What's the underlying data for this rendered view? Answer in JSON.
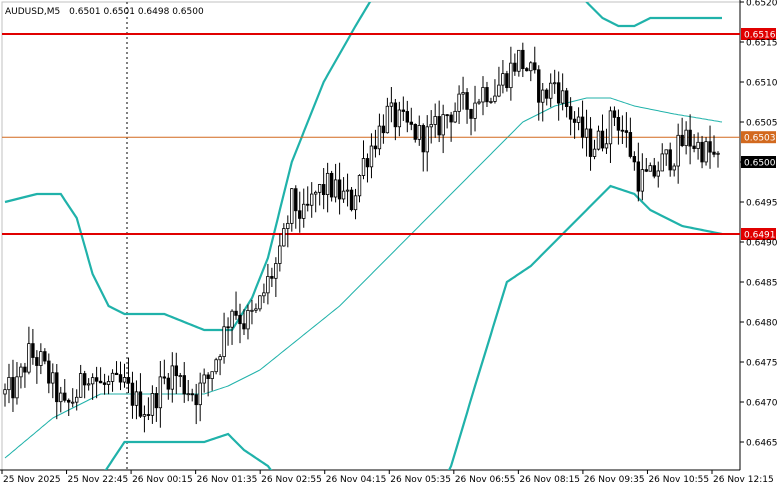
{
  "chart_data": {
    "type": "candlestick",
    "symbol_label": "AUDUSD,M5",
    "ohlc_label": "0.6501 0.6501 0.6498 0.6500",
    "ylim": [
      0.64615,
      0.652
    ],
    "y_ticks": [
      "0.6465",
      "0.6470",
      "0.6475",
      "0.6480",
      "0.6485",
      "0.6490",
      "0.6495",
      "0.6500",
      "0.6505",
      "0.6510",
      "0.6515",
      "0.6520"
    ],
    "x_ticks": [
      "25 Nov 2025",
      "25 Nov 22:45",
      "26 Nov 00:15",
      "26 Nov 01:35",
      "26 Nov 02:55",
      "26 Nov 04:15",
      "26 Nov 05:35",
      "26 Nov 06:55",
      "26 Nov 08:15",
      "26 Nov 09:35",
      "26 Nov 10:55",
      "26 Nov 12:15"
    ],
    "grid": false,
    "colors": {
      "candle": "#000000",
      "bollinger": "#20b2aa",
      "level_line": "#e00000",
      "current_price_line": "#d2691e",
      "price_box": "#000000"
    },
    "levels": [
      {
        "value": 0.6516,
        "label": "0.6516",
        "color": "#e00000"
      },
      {
        "value": 0.6491,
        "label": "0.6491",
        "color": "#e00000"
      },
      {
        "value": 0.65031,
        "label": "0.6503",
        "color": "#d2691e"
      }
    ],
    "current_price": {
      "value": 0.65,
      "label": "0.6500"
    },
    "candle_anchors": [
      {
        "i": 0,
        "c": 0.6471
      },
      {
        "i": 3,
        "c": 0.6472
      },
      {
        "i": 6,
        "c": 0.6476
      },
      {
        "i": 9,
        "c": 0.6475
      },
      {
        "i": 12,
        "c": 0.6472
      },
      {
        "i": 15,
        "c": 0.6469
      },
      {
        "i": 18,
        "c": 0.6471
      },
      {
        "i": 21,
        "c": 0.6474
      },
      {
        "i": 24,
        "c": 0.6472
      },
      {
        "i": 27,
        "c": 0.6472
      },
      {
        "i": 30,
        "c": 0.6472
      },
      {
        "i": 33,
        "c": 0.647
      },
      {
        "i": 36,
        "c": 0.6469
      },
      {
        "i": 39,
        "c": 0.6472
      },
      {
        "i": 42,
        "c": 0.6474
      },
      {
        "i": 45,
        "c": 0.6472
      },
      {
        "i": 48,
        "c": 0.6471
      },
      {
        "i": 51,
        "c": 0.6473
      },
      {
        "i": 54,
        "c": 0.6477
      },
      {
        "i": 57,
        "c": 0.6482
      },
      {
        "i": 60,
        "c": 0.648
      },
      {
        "i": 63,
        "c": 0.6481
      },
      {
        "i": 66,
        "c": 0.6485
      },
      {
        "i": 69,
        "c": 0.6488
      },
      {
        "i": 72,
        "c": 0.6495
      },
      {
        "i": 75,
        "c": 0.6493
      },
      {
        "i": 78,
        "c": 0.6496
      },
      {
        "i": 81,
        "c": 0.6497
      },
      {
        "i": 84,
        "c": 0.6496
      },
      {
        "i": 87,
        "c": 0.6495
      },
      {
        "i": 90,
        "c": 0.65
      },
      {
        "i": 93,
        "c": 0.6503
      },
      {
        "i": 96,
        "c": 0.6506
      },
      {
        "i": 99,
        "c": 0.6505
      },
      {
        "i": 102,
        "c": 0.6504
      },
      {
        "i": 105,
        "c": 0.6503
      },
      {
        "i": 108,
        "c": 0.6504
      },
      {
        "i": 111,
        "c": 0.6506
      },
      {
        "i": 114,
        "c": 0.6507
      },
      {
        "i": 117,
        "c": 0.6507
      },
      {
        "i": 120,
        "c": 0.6509
      },
      {
        "i": 123,
        "c": 0.6509
      },
      {
        "i": 126,
        "c": 0.6511
      },
      {
        "i": 129,
        "c": 0.6513
      },
      {
        "i": 132,
        "c": 0.6511
      },
      {
        "i": 135,
        "c": 0.6508
      },
      {
        "i": 138,
        "c": 0.651
      },
      {
        "i": 141,
        "c": 0.6507
      },
      {
        "i": 144,
        "c": 0.6504
      },
      {
        "i": 147,
        "c": 0.6502
      },
      {
        "i": 150,
        "c": 0.6503
      },
      {
        "i": 153,
        "c": 0.6506
      },
      {
        "i": 156,
        "c": 0.6503
      },
      {
        "i": 159,
        "c": 0.6498
      },
      {
        "i": 162,
        "c": 0.6498
      },
      {
        "i": 165,
        "c": 0.65
      },
      {
        "i": 168,
        "c": 0.6501
      },
      {
        "i": 171,
        "c": 0.6503
      },
      {
        "i": 174,
        "c": 0.6502
      },
      {
        "i": 177,
        "c": 0.6501
      },
      {
        "i": 179,
        "c": 0.65
      }
    ],
    "bollinger_upper": [
      [
        0,
        0.6495
      ],
      [
        8,
        0.6496
      ],
      [
        14,
        0.6496
      ],
      [
        18,
        0.6493
      ],
      [
        22,
        0.6486
      ],
      [
        26,
        0.6482
      ],
      [
        30,
        0.6481
      ],
      [
        40,
        0.6481
      ],
      [
        50,
        0.6479
      ],
      [
        57,
        0.6479
      ],
      [
        62,
        0.6483
      ],
      [
        66,
        0.6488
      ],
      [
        72,
        0.65
      ],
      [
        80,
        0.651
      ],
      [
        88,
        0.6517
      ],
      [
        94,
        0.6522
      ],
      [
        140,
        0.6525
      ],
      [
        146,
        0.652
      ],
      [
        150,
        0.6518
      ],
      [
        154,
        0.6517
      ],
      [
        158,
        0.6517
      ],
      [
        162,
        0.6518
      ],
      [
        172,
        0.6518
      ],
      [
        180,
        0.6518
      ]
    ],
    "bollinger_middle": [
      [
        0,
        0.6463
      ],
      [
        12,
        0.6468
      ],
      [
        24,
        0.6471
      ],
      [
        32,
        0.6471
      ],
      [
        40,
        0.6471
      ],
      [
        50,
        0.6471
      ],
      [
        56,
        0.6472
      ],
      [
        64,
        0.6474
      ],
      [
        74,
        0.6478
      ],
      [
        84,
        0.6482
      ],
      [
        96,
        0.6488
      ],
      [
        108,
        0.6494
      ],
      [
        120,
        0.65
      ],
      [
        130,
        0.6505
      ],
      [
        138,
        0.6507
      ],
      [
        146,
        0.6508
      ],
      [
        152,
        0.6508
      ],
      [
        158,
        0.6507
      ],
      [
        168,
        0.6506
      ],
      [
        180,
        0.6505
      ]
    ],
    "bollinger_lower": [
      [
        22,
        0.6459
      ],
      [
        30,
        0.6465
      ],
      [
        40,
        0.6465
      ],
      [
        50,
        0.6465
      ],
      [
        56,
        0.6466
      ],
      [
        60,
        0.6464
      ],
      [
        66,
        0.6462
      ],
      [
        72,
        0.6458
      ],
      [
        100,
        0.645
      ],
      [
        112,
        0.6462
      ],
      [
        118,
        0.6472
      ],
      [
        126,
        0.6485
      ],
      [
        132,
        0.6487
      ],
      [
        140,
        0.6491
      ],
      [
        146,
        0.6494
      ],
      [
        152,
        0.6497
      ],
      [
        158,
        0.6496
      ],
      [
        162,
        0.6494
      ],
      [
        170,
        0.6492
      ],
      [
        180,
        0.6491
      ]
    ],
    "n_candles": 180
  }
}
